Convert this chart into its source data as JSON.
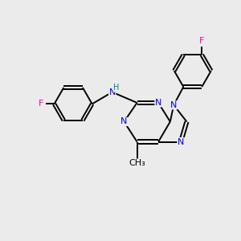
{
  "background_color": "#ebebeb",
  "bond_color": "#000000",
  "N_color": "#0000ee",
  "F_color": "#ff00aa",
  "H_color": "#008080",
  "line_width": 1.4,
  "figsize": [
    3.0,
    3.0
  ],
  "dpi": 100,
  "xlim": [
    0,
    10
  ],
  "ylim": [
    0,
    10
  ],
  "font_size": 8.0
}
